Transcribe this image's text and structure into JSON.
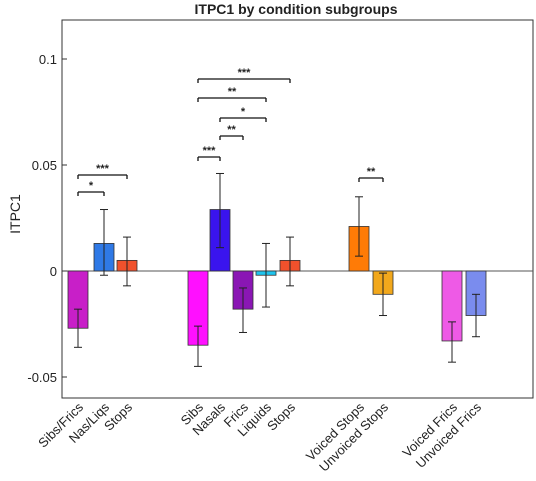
{
  "chart_data": {
    "type": "bar",
    "title": "ITPC1 by condition subgroups",
    "xlabel": "",
    "ylabel": "ITPC1",
    "ylim": [
      -0.06,
      0.12
    ],
    "yticks": [
      -0.05,
      0,
      0.05,
      0.1
    ],
    "ytick_labels": [
      "-0.05",
      "0",
      "0.05",
      "0.1"
    ],
    "zero_line": true,
    "grid": false,
    "bars": [
      {
        "label": "Sibs/Frics",
        "value": -0.027,
        "err_low": -0.036,
        "err_high": -0.018,
        "color": "#c81fc8"
      },
      {
        "label": "Nas/Liqs",
        "value": 0.013,
        "err_low": -0.002,
        "err_high": 0.029,
        "color": "#2f79e6"
      },
      {
        "label": "Stops",
        "value": 0.005,
        "err_low": -0.007,
        "err_high": 0.016,
        "color": "#f0512c"
      },
      {
        "label": "Sibs",
        "value": -0.035,
        "err_low": -0.045,
        "err_high": -0.026,
        "color": "#ff10ff"
      },
      {
        "label": "Nasals",
        "value": 0.029,
        "err_low": 0.011,
        "err_high": 0.046,
        "color": "#3a14ee"
      },
      {
        "label": "Frics",
        "value": -0.018,
        "err_low": -0.029,
        "err_high": -0.008,
        "color": "#8a16b4"
      },
      {
        "label": "Liquids",
        "value": -0.002,
        "err_low": -0.017,
        "err_high": 0.013,
        "color": "#1ec4ee"
      },
      {
        "label": "Stops",
        "value": 0.005,
        "err_low": -0.007,
        "err_high": 0.016,
        "color": "#f0512c"
      },
      {
        "label": "Voiced Stops",
        "value": 0.021,
        "err_low": 0.007,
        "err_high": 0.035,
        "color": "#ff7b06"
      },
      {
        "label": "Unvoiced Stops",
        "value": -0.011,
        "err_low": -0.021,
        "err_high": -0.001,
        "color": "#f2a81c"
      },
      {
        "label": "Voiced Frics",
        "value": -0.033,
        "err_low": -0.043,
        "err_high": -0.024,
        "color": "#ee5ae6"
      },
      {
        "label": "Unvoiced Frics",
        "value": -0.021,
        "err_low": -0.031,
        "err_high": -0.011,
        "color": "#7a8cee"
      }
    ],
    "significance": [
      {
        "from": 0,
        "to": 1,
        "stars": "*"
      },
      {
        "from": 0,
        "to": 2,
        "stars": "***"
      },
      {
        "from": 3,
        "to": 4,
        "stars": "***"
      },
      {
        "from": 4,
        "to": 5,
        "stars": "**"
      },
      {
        "from": 4,
        "to": 6,
        "stars": "*"
      },
      {
        "from": 3,
        "to": 6,
        "stars": "**"
      },
      {
        "from": 3,
        "to": 7,
        "stars": "***"
      },
      {
        "from": 8,
        "to": 9,
        "stars": "**"
      }
    ]
  }
}
